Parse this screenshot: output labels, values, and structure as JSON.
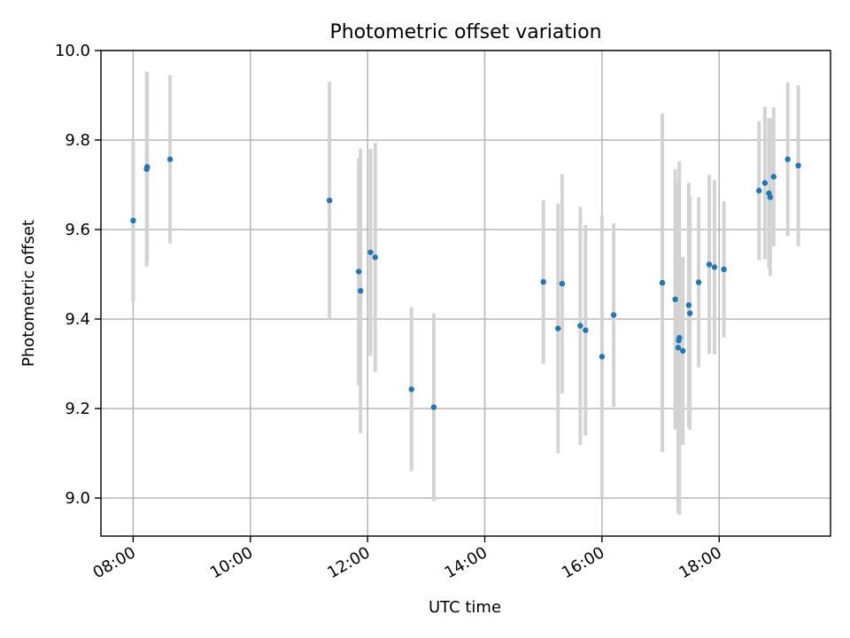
{
  "chart_data": {
    "type": "scatter",
    "title": "Photometric offset variation",
    "xlabel": "UTC time",
    "ylabel": "Photometric offset",
    "x_unit": "hours UTC",
    "xlim": [
      7.45,
      19.9
    ],
    "ylim": [
      8.915,
      10.0
    ],
    "xticks": [
      8,
      10,
      12,
      14,
      16,
      18
    ],
    "xtick_labels": [
      "08:00",
      "10:00",
      "12:00",
      "14:00",
      "16:00",
      "18:00"
    ],
    "yticks": [
      9.0,
      9.2,
      9.4,
      9.6,
      9.8,
      10.0
    ],
    "ytick_labels": [
      "9.0",
      "9.2",
      "9.4",
      "9.6",
      "9.8",
      "10.0"
    ],
    "grid": true,
    "colors": {
      "points": "#1f77b4",
      "errorbars": "#d3d3d3"
    },
    "points": [
      {
        "x": 8.0,
        "y": 9.62,
        "err": 0.18
      },
      {
        "x": 8.23,
        "y": 9.735,
        "err": 0.218
      },
      {
        "x": 8.24,
        "y": 9.74,
        "err": 0.212
      },
      {
        "x": 8.63,
        "y": 9.757,
        "err": 0.188
      },
      {
        "x": 11.35,
        "y": 9.665,
        "err": 0.265
      },
      {
        "x": 11.85,
        "y": 9.506,
        "err": 0.254
      },
      {
        "x": 11.88,
        "y": 9.463,
        "err": 0.318
      },
      {
        "x": 12.05,
        "y": 9.549,
        "err": 0.231
      },
      {
        "x": 12.13,
        "y": 9.538,
        "err": 0.256
      },
      {
        "x": 12.75,
        "y": 9.243,
        "err": 0.183
      },
      {
        "x": 13.13,
        "y": 9.203,
        "err": 0.21
      },
      {
        "x": 15.0,
        "y": 9.483,
        "err": 0.183
      },
      {
        "x": 15.25,
        "y": 9.379,
        "err": 0.279
      },
      {
        "x": 15.32,
        "y": 9.479,
        "err": 0.245
      },
      {
        "x": 15.63,
        "y": 9.385,
        "err": 0.266
      },
      {
        "x": 15.72,
        "y": 9.375,
        "err": 0.235
      },
      {
        "x": 16.0,
        "y": 9.316,
        "err": 0.316
      },
      {
        "x": 16.2,
        "y": 9.409,
        "err": 0.205
      },
      {
        "x": 17.03,
        "y": 9.481,
        "err": 0.378
      },
      {
        "x": 17.25,
        "y": 9.444,
        "err": 0.291
      },
      {
        "x": 17.3,
        "y": 9.336,
        "err": 0.369
      },
      {
        "x": 17.31,
        "y": 9.352,
        "err": 0.353
      },
      {
        "x": 17.32,
        "y": 9.358,
        "err": 0.395
      },
      {
        "x": 17.38,
        "y": 9.329,
        "err": 0.21
      },
      {
        "x": 17.48,
        "y": 9.431,
        "err": 0.273
      },
      {
        "x": 17.5,
        "y": 9.413,
        "err": 0.26
      },
      {
        "x": 17.65,
        "y": 9.482,
        "err": 0.19
      },
      {
        "x": 17.83,
        "y": 9.522,
        "err": 0.2
      },
      {
        "x": 17.92,
        "y": 9.516,
        "err": 0.195
      },
      {
        "x": 18.08,
        "y": 9.511,
        "err": 0.152
      },
      {
        "x": 18.68,
        "y": 9.687,
        "err": 0.155
      },
      {
        "x": 18.78,
        "y": 9.704,
        "err": 0.17
      },
      {
        "x": 18.85,
        "y": 9.681,
        "err": 0.168
      },
      {
        "x": 18.87,
        "y": 9.672,
        "err": 0.176
      },
      {
        "x": 18.93,
        "y": 9.718,
        "err": 0.155
      },
      {
        "x": 19.17,
        "y": 9.757,
        "err": 0.172
      },
      {
        "x": 19.35,
        "y": 9.743,
        "err": 0.18
      }
    ]
  }
}
